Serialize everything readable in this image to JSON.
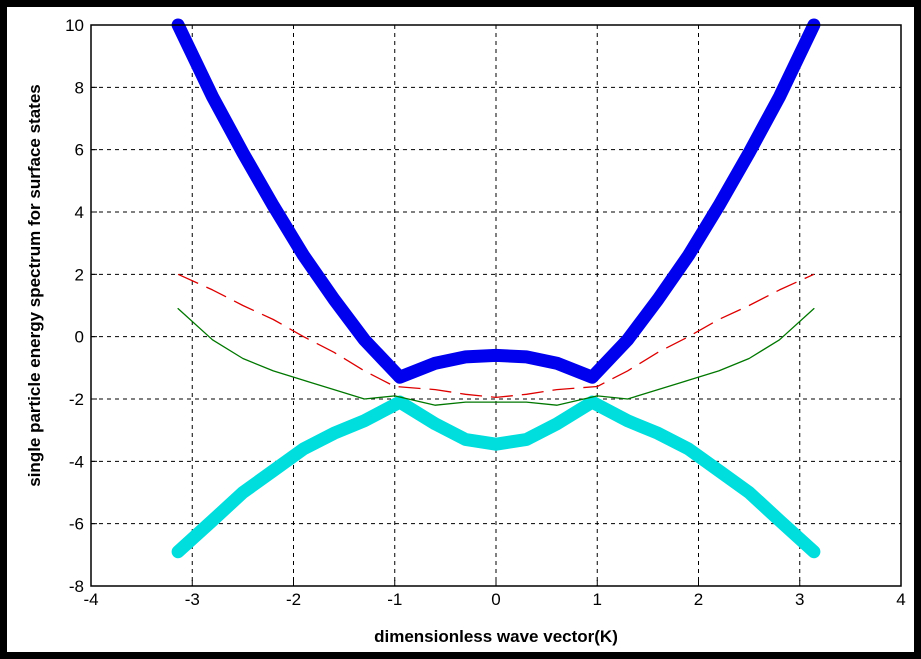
{
  "chart_data": {
    "type": "line",
    "title": "",
    "xlabel": "dimensionless  wave vector(K)",
    "ylabel": "single particle energy spectrum for surface states",
    "xlim": [
      -4,
      4
    ],
    "ylim": [
      -8,
      10
    ],
    "xticks": [
      -4,
      -3,
      -2,
      -1,
      0,
      1,
      2,
      3,
      4
    ],
    "yticks": [
      -8,
      -6,
      -4,
      -2,
      0,
      2,
      4,
      6,
      8,
      10
    ],
    "grid": true,
    "legend": "none",
    "series": [
      {
        "color": "#0000ee",
        "style": "solid-thick",
        "x": [
          -3.14,
          -2.8,
          -2.5,
          -2.2,
          -1.9,
          -1.6,
          -1.3,
          -0.95,
          -0.6,
          -0.3,
          0.0,
          0.3,
          0.6,
          0.95,
          1.3,
          1.6,
          1.9,
          2.2,
          2.5,
          2.8,
          3.14
        ],
        "y": [
          10.0,
          7.7,
          5.9,
          4.2,
          2.6,
          1.2,
          -0.1,
          -1.3,
          -0.85,
          -0.65,
          -0.6,
          -0.65,
          -0.85,
          -1.3,
          -0.1,
          1.2,
          2.6,
          4.2,
          5.9,
          7.7,
          10.0
        ]
      },
      {
        "color": "#00dddd",
        "style": "solid-thick",
        "x": [
          -3.14,
          -2.8,
          -2.5,
          -2.2,
          -1.9,
          -1.6,
          -1.3,
          -0.95,
          -0.6,
          -0.3,
          0.0,
          0.3,
          0.6,
          0.95,
          1.3,
          1.6,
          1.9,
          2.2,
          2.5,
          2.8,
          3.14
        ],
        "y": [
          -6.9,
          -5.9,
          -5.0,
          -4.3,
          -3.6,
          -3.1,
          -2.7,
          -2.1,
          -2.8,
          -3.3,
          -3.45,
          -3.3,
          -2.8,
          -2.1,
          -2.7,
          -3.1,
          -3.6,
          -4.3,
          -5.0,
          -5.9,
          -6.9
        ]
      },
      {
        "color": "#dd0000",
        "style": "dashed",
        "x": [
          -3.14,
          -2.8,
          -2.5,
          -2.2,
          -1.9,
          -1.6,
          -1.3,
          -1.0,
          -0.6,
          -0.3,
          0.0,
          0.3,
          0.6,
          1.0,
          1.3,
          1.6,
          1.9,
          2.2,
          2.5,
          2.8,
          3.14
        ],
        "y": [
          2.0,
          1.5,
          1.0,
          0.55,
          0.0,
          -0.5,
          -1.1,
          -1.6,
          -1.7,
          -1.85,
          -1.95,
          -1.85,
          -1.7,
          -1.6,
          -1.1,
          -0.5,
          0.0,
          0.55,
          1.0,
          1.5,
          2.0
        ]
      },
      {
        "color": "#007700",
        "style": "solid-thin",
        "x": [
          -3.14,
          -2.8,
          -2.5,
          -2.2,
          -1.9,
          -1.6,
          -1.3,
          -1.0,
          -0.6,
          -0.3,
          0.0,
          0.3,
          0.6,
          1.0,
          1.3,
          1.6,
          1.9,
          2.2,
          2.5,
          2.8,
          3.14
        ],
        "y": [
          0.9,
          -0.1,
          -0.7,
          -1.1,
          -1.4,
          -1.7,
          -2.0,
          -1.9,
          -2.2,
          -2.1,
          -2.1,
          -2.1,
          -2.2,
          -1.9,
          -2.0,
          -1.7,
          -1.4,
          -1.1,
          -0.7,
          -0.1,
          0.9
        ]
      }
    ]
  }
}
